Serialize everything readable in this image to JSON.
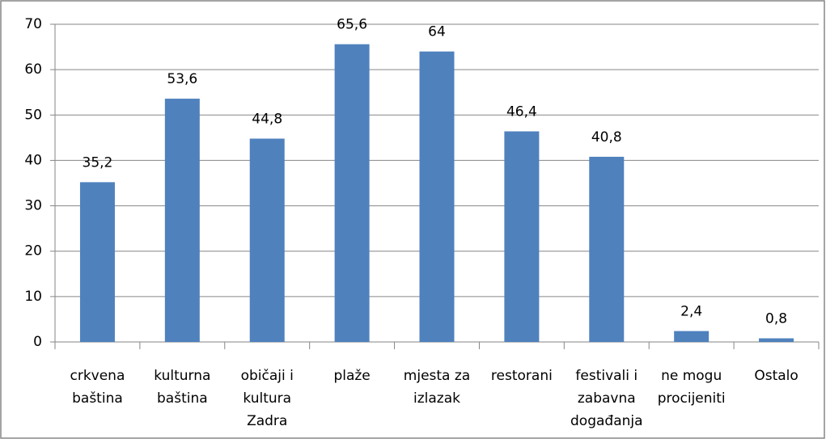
{
  "chart_data": {
    "type": "bar",
    "categories": [
      "crkvena baština",
      "kulturna baština",
      "običaji i kultura Zadra",
      "plaže",
      "mjesta za izlazak",
      "restorani",
      "festivali i zabavna događanja",
      "ne mogu procijeniti",
      "Ostalo"
    ],
    "values": [
      35.2,
      53.6,
      44.8,
      65.6,
      64,
      46.4,
      40.8,
      2.4,
      0.8
    ],
    "value_labels": [
      "35,2",
      "53,6",
      "44,8",
      "65,6",
      "64",
      "46,4",
      "40,8",
      "2,4",
      "0,8"
    ],
    "color": "#4f81bd",
    "ylim": [
      0,
      70
    ],
    "yticks": [
      0,
      10,
      20,
      30,
      40,
      50,
      60,
      70
    ],
    "grid": true
  }
}
